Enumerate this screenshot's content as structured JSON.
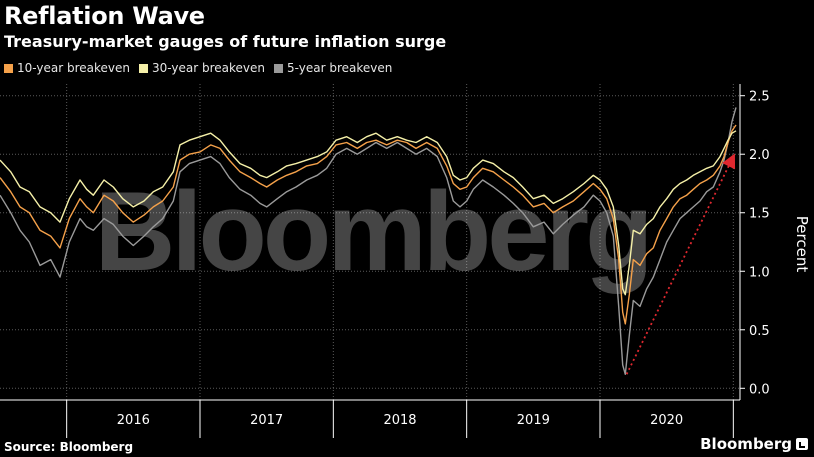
{
  "title": "Reflation Wave",
  "subtitle": "Treasury-market gauges of future inflation surge",
  "source": "Source: Bloomberg",
  "brand": "Bloomberg",
  "watermark": "Bloomberg",
  "colors": {
    "background": "#000000",
    "ten_year": "#f5a14a",
    "thirty_year": "#f5f0a8",
    "five_year": "#9a9a9a",
    "trend_arrow": "#e0282f",
    "grid": "#555555"
  },
  "chart_data": {
    "type": "line",
    "title": "Reflation Wave",
    "subtitle": "Treasury-market gauges of future inflation surge",
    "xlabel": "",
    "ylabel": "Percent",
    "xlim": [
      2015.5,
      2021.05
    ],
    "ylim": [
      -0.1,
      2.6
    ],
    "y_ticks": [
      0.0,
      0.5,
      1.0,
      1.5,
      2.0,
      2.5
    ],
    "y_tick_labels": [
      "0.0",
      "0.5",
      "1.0",
      "1.5",
      "2.0",
      "2.5"
    ],
    "x_labels": [
      {
        "label": "2016",
        "center": 2016.5
      },
      {
        "label": "2017",
        "center": 2017.5
      },
      {
        "label": "2018",
        "center": 2018.5
      },
      {
        "label": "2019",
        "center": 2019.5
      },
      {
        "label": "2020",
        "center": 2020.5
      }
    ],
    "year_boundaries": [
      2016,
      2017,
      2018,
      2019,
      2020,
      2021
    ],
    "grid": true,
    "axis_position": "right",
    "legend_position": "top-left",
    "series": [
      {
        "name": "10-year breakeven",
        "color": "#f5a14a",
        "x": [
          2015.5,
          2015.58,
          2015.65,
          2015.72,
          2015.8,
          2015.88,
          2015.95,
          2016.02,
          2016.1,
          2016.15,
          2016.2,
          2016.28,
          2016.35,
          2016.42,
          2016.5,
          2016.58,
          2016.65,
          2016.72,
          2016.8,
          2016.85,
          2016.92,
          2017.0,
          2017.08,
          2017.15,
          2017.22,
          2017.3,
          2017.38,
          2017.45,
          2017.5,
          2017.58,
          2017.65,
          2017.72,
          2017.8,
          2017.88,
          2017.95,
          2018.02,
          2018.1,
          2018.18,
          2018.25,
          2018.32,
          2018.4,
          2018.48,
          2018.55,
          2018.62,
          2018.7,
          2018.78,
          2018.85,
          2018.9,
          2018.95,
          2019.0,
          2019.05,
          2019.12,
          2019.2,
          2019.28,
          2019.35,
          2019.42,
          2019.5,
          2019.58,
          2019.65,
          2019.72,
          2019.8,
          2019.88,
          2019.95,
          2020.0,
          2020.05,
          2020.1,
          2020.14,
          2020.17,
          2020.19,
          2020.22,
          2020.25,
          2020.3,
          2020.35,
          2020.4,
          2020.45,
          2020.5,
          2020.55,
          2020.6,
          2020.65,
          2020.7,
          2020.75,
          2020.8,
          2020.85,
          2020.9,
          2020.93,
          2020.96,
          2020.99,
          2021.02
        ],
        "values": [
          1.8,
          1.68,
          1.55,
          1.5,
          1.35,
          1.3,
          1.2,
          1.45,
          1.62,
          1.55,
          1.5,
          1.65,
          1.6,
          1.5,
          1.42,
          1.48,
          1.55,
          1.6,
          1.72,
          1.95,
          2.0,
          2.02,
          2.08,
          2.05,
          1.95,
          1.85,
          1.8,
          1.75,
          1.72,
          1.78,
          1.82,
          1.85,
          1.9,
          1.92,
          1.98,
          2.08,
          2.1,
          2.05,
          2.1,
          2.12,
          2.08,
          2.12,
          2.1,
          2.05,
          2.1,
          2.05,
          1.9,
          1.75,
          1.7,
          1.72,
          1.8,
          1.88,
          1.85,
          1.78,
          1.72,
          1.65,
          1.55,
          1.58,
          1.5,
          1.55,
          1.6,
          1.68,
          1.75,
          1.7,
          1.62,
          1.45,
          1.1,
          0.65,
          0.55,
          0.8,
          1.1,
          1.05,
          1.15,
          1.2,
          1.35,
          1.45,
          1.55,
          1.62,
          1.65,
          1.7,
          1.75,
          1.78,
          1.82,
          1.9,
          1.98,
          2.1,
          2.2,
          2.25
        ]
      },
      {
        "name": "30-year breakeven",
        "color": "#f5f0a8",
        "x": [
          2015.5,
          2015.58,
          2015.65,
          2015.72,
          2015.8,
          2015.88,
          2015.95,
          2016.02,
          2016.1,
          2016.15,
          2016.2,
          2016.28,
          2016.35,
          2016.42,
          2016.5,
          2016.58,
          2016.65,
          2016.72,
          2016.8,
          2016.85,
          2016.92,
          2017.0,
          2017.08,
          2017.15,
          2017.22,
          2017.3,
          2017.38,
          2017.45,
          2017.5,
          2017.58,
          2017.65,
          2017.72,
          2017.8,
          2017.88,
          2017.95,
          2018.02,
          2018.1,
          2018.18,
          2018.25,
          2018.32,
          2018.4,
          2018.48,
          2018.55,
          2018.62,
          2018.7,
          2018.78,
          2018.85,
          2018.9,
          2018.95,
          2019.0,
          2019.05,
          2019.12,
          2019.2,
          2019.28,
          2019.35,
          2019.42,
          2019.5,
          2019.58,
          2019.65,
          2019.72,
          2019.8,
          2019.88,
          2019.95,
          2020.0,
          2020.05,
          2020.1,
          2020.14,
          2020.17,
          2020.19,
          2020.22,
          2020.25,
          2020.3,
          2020.35,
          2020.4,
          2020.45,
          2020.5,
          2020.55,
          2020.6,
          2020.65,
          2020.7,
          2020.75,
          2020.8,
          2020.85,
          2020.9,
          2020.93,
          2020.96,
          2020.99,
          2021.02
        ],
        "values": [
          1.95,
          1.85,
          1.72,
          1.68,
          1.55,
          1.5,
          1.42,
          1.62,
          1.78,
          1.7,
          1.65,
          1.78,
          1.72,
          1.62,
          1.55,
          1.6,
          1.68,
          1.72,
          1.85,
          2.08,
          2.12,
          2.15,
          2.18,
          2.12,
          2.02,
          1.92,
          1.88,
          1.82,
          1.8,
          1.85,
          1.9,
          1.92,
          1.95,
          1.98,
          2.02,
          2.12,
          2.15,
          2.1,
          2.15,
          2.18,
          2.12,
          2.15,
          2.12,
          2.1,
          2.15,
          2.1,
          1.98,
          1.82,
          1.78,
          1.8,
          1.88,
          1.95,
          1.92,
          1.85,
          1.8,
          1.72,
          1.62,
          1.65,
          1.58,
          1.62,
          1.68,
          1.75,
          1.82,
          1.78,
          1.7,
          1.55,
          1.22,
          0.85,
          0.8,
          1.05,
          1.35,
          1.32,
          1.4,
          1.45,
          1.55,
          1.62,
          1.7,
          1.75,
          1.78,
          1.82,
          1.85,
          1.88,
          1.9,
          1.98,
          2.05,
          2.12,
          2.18,
          2.2
        ]
      },
      {
        "name": "5-year breakeven",
        "color": "#9a9a9a",
        "x": [
          2015.5,
          2015.58,
          2015.65,
          2015.72,
          2015.8,
          2015.88,
          2015.95,
          2016.02,
          2016.1,
          2016.15,
          2016.2,
          2016.28,
          2016.35,
          2016.42,
          2016.5,
          2016.58,
          2016.65,
          2016.72,
          2016.8,
          2016.85,
          2016.92,
          2017.0,
          2017.08,
          2017.15,
          2017.22,
          2017.3,
          2017.38,
          2017.45,
          2017.5,
          2017.58,
          2017.65,
          2017.72,
          2017.8,
          2017.88,
          2017.95,
          2018.02,
          2018.1,
          2018.18,
          2018.25,
          2018.32,
          2018.4,
          2018.48,
          2018.55,
          2018.62,
          2018.7,
          2018.78,
          2018.85,
          2018.9,
          2018.95,
          2019.0,
          2019.05,
          2019.12,
          2019.2,
          2019.28,
          2019.35,
          2019.42,
          2019.5,
          2019.58,
          2019.65,
          2019.72,
          2019.8,
          2019.88,
          2019.95,
          2020.0,
          2020.05,
          2020.1,
          2020.14,
          2020.17,
          2020.19,
          2020.22,
          2020.25,
          2020.3,
          2020.35,
          2020.4,
          2020.45,
          2020.5,
          2020.55,
          2020.6,
          2020.65,
          2020.7,
          2020.75,
          2020.8,
          2020.85,
          2020.9,
          2020.93,
          2020.96,
          2020.99,
          2021.02
        ],
        "values": [
          1.65,
          1.5,
          1.35,
          1.25,
          1.05,
          1.1,
          0.95,
          1.25,
          1.45,
          1.38,
          1.35,
          1.45,
          1.4,
          1.3,
          1.22,
          1.3,
          1.38,
          1.45,
          1.6,
          1.85,
          1.92,
          1.95,
          1.98,
          1.92,
          1.8,
          1.7,
          1.65,
          1.58,
          1.55,
          1.62,
          1.68,
          1.72,
          1.78,
          1.82,
          1.88,
          2.0,
          2.05,
          2.0,
          2.05,
          2.1,
          2.05,
          2.1,
          2.05,
          2.0,
          2.05,
          1.98,
          1.8,
          1.6,
          1.55,
          1.6,
          1.7,
          1.78,
          1.72,
          1.65,
          1.58,
          1.5,
          1.38,
          1.42,
          1.32,
          1.4,
          1.48,
          1.55,
          1.65,
          1.6,
          1.5,
          1.3,
          0.7,
          0.2,
          0.12,
          0.45,
          0.75,
          0.7,
          0.85,
          0.95,
          1.1,
          1.25,
          1.35,
          1.45,
          1.5,
          1.55,
          1.6,
          1.68,
          1.72,
          1.85,
          1.95,
          2.1,
          2.28,
          2.4
        ]
      }
    ],
    "annotations": [
      {
        "type": "arrow",
        "color": "#e0282f",
        "style": "dotted",
        "from": {
          "x": 2020.2,
          "y": 0.12
        },
        "to": {
          "x": 2021.0,
          "y": 1.98
        }
      }
    ]
  }
}
